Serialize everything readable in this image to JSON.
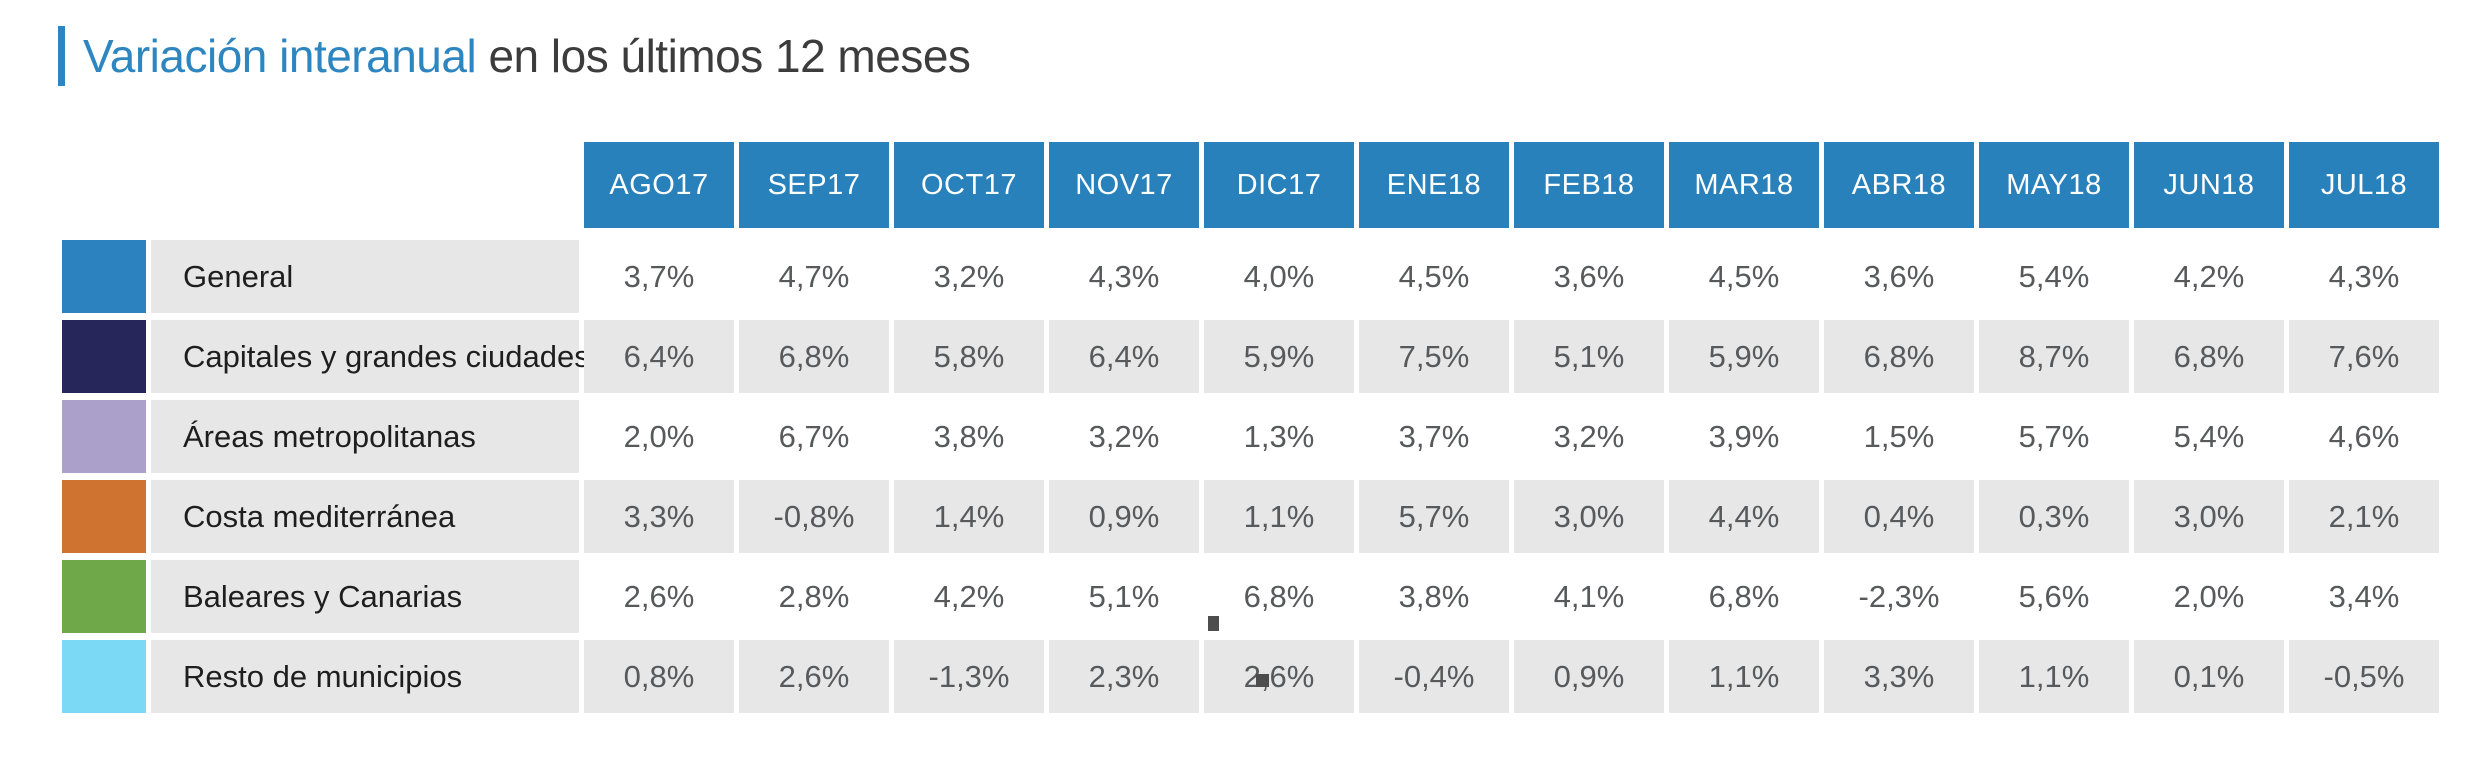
{
  "title": {
    "highlight": "Variación interanual",
    "rest": " en los últimos 12 meses"
  },
  "colors": {
    "accent_blue": "#2e86c1",
    "header_bg": "#2981bc",
    "stripe_gray": "#e7e7e7",
    "value_text": "#58595b"
  },
  "table": {
    "columns": [
      "AGO17",
      "SEP17",
      "OCT17",
      "NOV17",
      "DIC17",
      "ENE18",
      "FEB18",
      "MAR18",
      "ABR18",
      "MAY18",
      "JUN18",
      "JUL18"
    ],
    "rows": [
      {
        "label": "General",
        "swatch": "#2b82be",
        "striped": false,
        "values": [
          "3,7%",
          "4,7%",
          "3,2%",
          "4,3%",
          "4,0%",
          "4,5%",
          "3,6%",
          "4,5%",
          "3,6%",
          "5,4%",
          "4,2%",
          "4,3%"
        ]
      },
      {
        "label": "Capitales y grandes ciudades",
        "swatch": "#27265a",
        "striped": true,
        "values": [
          "6,4%",
          "6,8%",
          "5,8%",
          "6,4%",
          "5,9%",
          "7,5%",
          "5,1%",
          "5,9%",
          "6,8%",
          "8,7%",
          "6,8%",
          "7,6%"
        ]
      },
      {
        "label": "Áreas metropolitanas",
        "swatch": "#aba0c9",
        "striped": false,
        "values": [
          "2,0%",
          "6,7%",
          "3,8%",
          "3,2%",
          "1,3%",
          "3,7%",
          "3,2%",
          "3,9%",
          "1,5%",
          "5,7%",
          "5,4%",
          "4,6%"
        ]
      },
      {
        "label": "Costa mediterránea",
        "swatch": "#cf7430",
        "striped": true,
        "values": [
          "3,3%",
          "-0,8%",
          "1,4%",
          "0,9%",
          "1,1%",
          "5,7%",
          "3,0%",
          "4,4%",
          "0,4%",
          "0,3%",
          "3,0%",
          "2,1%"
        ]
      },
      {
        "label": "Baleares y Canarias",
        "swatch": "#6fa848",
        "striped": false,
        "values": [
          "2,6%",
          "2,8%",
          "4,2%",
          "5,1%",
          "6,8%",
          "3,8%",
          "4,1%",
          "6,8%",
          "-2,3%",
          "5,6%",
          "2,0%",
          "3,4%"
        ]
      },
      {
        "label": "Resto de municipios",
        "swatch": "#7bd9f6",
        "striped": true,
        "values": [
          "0,8%",
          "2,6%",
          "-1,3%",
          "2,3%",
          "2,6%",
          "-0,4%",
          "0,9%",
          "1,1%",
          "3,3%",
          "1,1%",
          "0,1%",
          "-0,5%"
        ]
      }
    ]
  },
  "chart_data": {
    "type": "table",
    "title": "Variación interanual en los últimos 12 meses",
    "unit": "%",
    "categories": [
      "AGO17",
      "SEP17",
      "OCT17",
      "NOV17",
      "DIC17",
      "ENE18",
      "FEB18",
      "MAR18",
      "ABR18",
      "MAY18",
      "JUN18",
      "JUL18"
    ],
    "series": [
      {
        "name": "General",
        "color": "#2b82be",
        "values": [
          3.7,
          4.7,
          3.2,
          4.3,
          4.0,
          4.5,
          3.6,
          4.5,
          3.6,
          5.4,
          4.2,
          4.3
        ]
      },
      {
        "name": "Capitales y grandes ciudades",
        "color": "#27265a",
        "values": [
          6.4,
          6.8,
          5.8,
          6.4,
          5.9,
          7.5,
          5.1,
          5.9,
          6.8,
          8.7,
          6.8,
          7.6
        ]
      },
      {
        "name": "Áreas metropolitanas",
        "color": "#aba0c9",
        "values": [
          2.0,
          6.7,
          3.8,
          3.2,
          1.3,
          3.7,
          3.2,
          3.9,
          1.5,
          5.7,
          5.4,
          4.6
        ]
      },
      {
        "name": "Costa mediterránea",
        "color": "#cf7430",
        "values": [
          3.3,
          -0.8,
          1.4,
          0.9,
          1.1,
          5.7,
          3.0,
          4.4,
          0.4,
          0.3,
          3.0,
          2.1
        ]
      },
      {
        "name": "Baleares y Canarias",
        "color": "#6fa848",
        "values": [
          2.6,
          2.8,
          4.2,
          5.1,
          6.8,
          3.8,
          4.1,
          6.8,
          -2.3,
          5.6,
          2.0,
          3.4
        ]
      },
      {
        "name": "Resto de municipios",
        "color": "#7bd9f6",
        "values": [
          0.8,
          2.6,
          -1.3,
          2.3,
          2.6,
          -0.4,
          0.9,
          1.1,
          3.3,
          1.1,
          0.1,
          -0.5
        ]
      }
    ]
  }
}
